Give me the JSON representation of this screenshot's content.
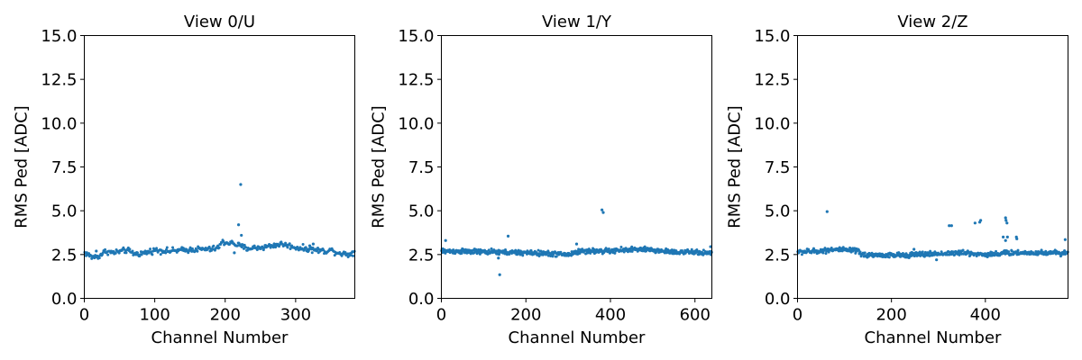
{
  "chart_data": [
    {
      "type": "scatter",
      "title": "View 0/U",
      "xlabel": "Channel Number",
      "ylabel": "RMS Ped [ADC]",
      "xlim": [
        0,
        384
      ],
      "ylim": [
        0,
        15
      ],
      "xticks": [
        "0",
        "100",
        "200",
        "300"
      ],
      "yticks": [
        "0.0",
        "2.5",
        "5.0",
        "7.5",
        "10.0",
        "12.5",
        "15.0"
      ],
      "color": "#1f77b4",
      "baseline": [
        [
          0,
          2.6
        ],
        [
          5,
          2.5
        ],
        [
          10,
          2.35
        ],
        [
          20,
          2.4
        ],
        [
          30,
          2.7
        ],
        [
          40,
          2.6
        ],
        [
          60,
          2.75
        ],
        [
          70,
          2.55
        ],
        [
          80,
          2.55
        ],
        [
          100,
          2.75
        ],
        [
          120,
          2.7
        ],
        [
          140,
          2.75
        ],
        [
          160,
          2.8
        ],
        [
          180,
          2.8
        ],
        [
          190,
          2.9
        ],
        [
          195,
          3.2
        ],
        [
          210,
          3.15
        ],
        [
          220,
          3.0
        ],
        [
          230,
          2.85
        ],
        [
          250,
          2.9
        ],
        [
          280,
          3.1
        ],
        [
          300,
          2.9
        ],
        [
          320,
          2.8
        ],
        [
          340,
          2.7
        ],
        [
          350,
          2.75
        ],
        [
          360,
          2.6
        ],
        [
          375,
          2.5
        ],
        [
          384,
          2.7
        ]
      ],
      "noise": 0.1,
      "outliers": [
        [
          222,
          6.5
        ],
        [
          219,
          4.2
        ],
        [
          223,
          3.6
        ],
        [
          213,
          2.6
        ],
        [
          325,
          3.1
        ],
        [
          320,
          3.0
        ],
        [
          17,
          2.7
        ]
      ]
    },
    {
      "type": "scatter",
      "title": "View 1/Y",
      "xlabel": "Channel Number",
      "ylabel": "RMS Ped [ADC]",
      "xlim": [
        0,
        640
      ],
      "ylim": [
        0,
        15
      ],
      "xticks": [
        "0",
        "200",
        "400",
        "600"
      ],
      "yticks": [
        "0.0",
        "2.5",
        "5.0",
        "7.5",
        "10.0",
        "12.5",
        "15.0"
      ],
      "color": "#1f77b4",
      "baseline": [
        [
          0,
          2.7
        ],
        [
          100,
          2.65
        ],
        [
          200,
          2.6
        ],
        [
          260,
          2.55
        ],
        [
          300,
          2.5
        ],
        [
          330,
          2.7
        ],
        [
          400,
          2.7
        ],
        [
          450,
          2.8
        ],
        [
          500,
          2.75
        ],
        [
          550,
          2.65
        ],
        [
          640,
          2.6
        ]
      ],
      "noise": 0.09,
      "outliers": [
        [
          138,
          1.35
        ],
        [
          135,
          2.3
        ],
        [
          158,
          3.55
        ],
        [
          380,
          5.05
        ],
        [
          383,
          4.9
        ],
        [
          320,
          3.1
        ],
        [
          10,
          3.3
        ],
        [
          637,
          2.95
        ]
      ]
    },
    {
      "type": "scatter",
      "title": "View 2/Z",
      "xlabel": "Channel Number",
      "ylabel": "RMS Ped [ADC]",
      "xlim": [
        0,
        576
      ],
      "ylim": [
        0,
        15
      ],
      "xticks": [
        "0",
        "200",
        "400"
      ],
      "yticks": [
        "0.0",
        "2.5",
        "5.0",
        "7.5",
        "10.0",
        "12.5",
        "15.0"
      ],
      "color": "#1f77b4",
      "baseline": [
        [
          0,
          2.65
        ],
        [
          50,
          2.7
        ],
        [
          70,
          2.8
        ],
        [
          128,
          2.7
        ],
        [
          135,
          2.5
        ],
        [
          200,
          2.45
        ],
        [
          250,
          2.5
        ],
        [
          300,
          2.55
        ],
        [
          350,
          2.6
        ],
        [
          400,
          2.5
        ],
        [
          450,
          2.6
        ],
        [
          500,
          2.6
        ],
        [
          576,
          2.6
        ]
      ],
      "noise": 0.09,
      "outliers": [
        [
          63,
          4.95
        ],
        [
          323,
          4.15
        ],
        [
          328,
          4.15
        ],
        [
          378,
          4.3
        ],
        [
          390,
          4.45
        ],
        [
          388,
          4.35
        ],
        [
          443,
          4.6
        ],
        [
          444,
          4.45
        ],
        [
          446,
          4.3
        ],
        [
          438,
          3.5
        ],
        [
          447,
          3.5
        ],
        [
          443,
          3.3
        ],
        [
          466,
          3.5
        ],
        [
          467,
          3.4
        ],
        [
          570,
          3.35
        ],
        [
          296,
          2.2
        ],
        [
          248,
          2.8
        ]
      ]
    }
  ]
}
